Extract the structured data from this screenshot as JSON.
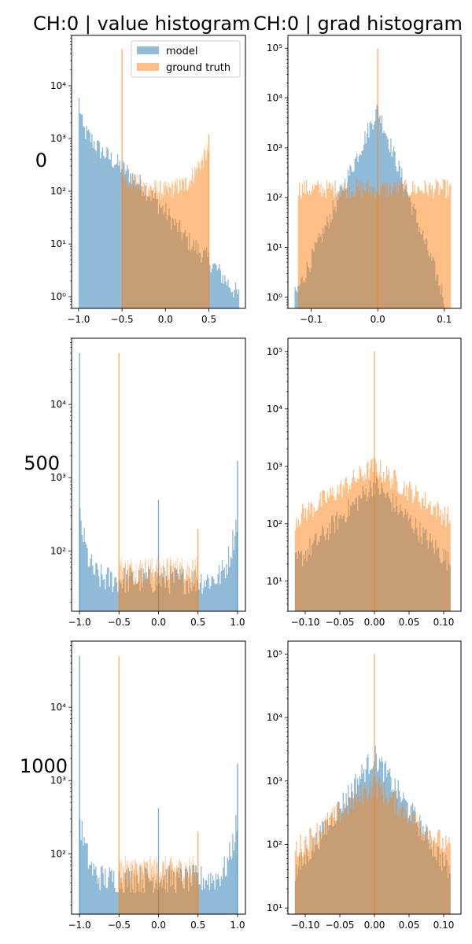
{
  "figure": {
    "col_titles": [
      "CH:0 | value histogram",
      "CH:0 | grad histogram"
    ],
    "row_labels": [
      "0",
      "500",
      "1000"
    ]
  },
  "legend": {
    "location": "top-right of first panel",
    "items": [
      {
        "label": "model",
        "color": "#1f77b4"
      },
      {
        "label": "ground truth",
        "color": "#ff7f0e"
      }
    ]
  },
  "chart_data": [
    {
      "type": "histogram",
      "panel": "row 0, value",
      "yscale": "log",
      "xlim": [
        -1.08,
        0.92
      ],
      "ylim": [
        0.6,
        90000
      ],
      "xticks": [
        -1.0,
        -0.5,
        0.0,
        0.5
      ],
      "xticklabels": [
        "−1.0",
        "−0.5",
        "0.0",
        "0.5"
      ],
      "yticks": [
        1,
        10,
        100,
        1000,
        10000
      ],
      "yticklabels": [
        "10⁰",
        "10¹",
        "10²",
        "10³",
        "10⁴"
      ],
      "series": [
        {
          "name": "model",
          "range": [
            -1.0,
            0.85
          ],
          "approx_counts_at_x": [
            [
              -1.0,
              6000
            ],
            [
              -0.95,
              1500
            ],
            [
              -0.75,
              600
            ],
            [
              -0.5,
              280
            ],
            [
              -0.25,
              120
            ],
            [
              0.0,
              40
            ],
            [
              0.25,
              12
            ],
            [
              0.5,
              5
            ],
            [
              0.85,
              1
            ]
          ]
        },
        {
          "name": "ground truth",
          "range": [
            -0.5,
            0.5
          ],
          "spikes": [
            [
              -0.5,
              50000
            ],
            [
              0.5,
              1200
            ]
          ],
          "approx_counts_at_x": [
            [
              -0.5,
              200
            ],
            [
              -0.25,
              120
            ],
            [
              0.0,
              100
            ],
            [
              0.25,
              140
            ],
            [
              0.5,
              600
            ]
          ]
        }
      ]
    },
    {
      "type": "histogram",
      "panel": "row 0, grad",
      "yscale": "log",
      "xlim": [
        -0.135,
        0.125
      ],
      "ylim": [
        0.6,
        180000
      ],
      "xticks": [
        -0.1,
        0.0,
        0.1
      ],
      "xticklabels": [
        "−0.1",
        "0.0",
        "0.1"
      ],
      "yticks": [
        1,
        10,
        100,
        1000,
        10000,
        100000
      ],
      "yticklabels": [
        "10⁰",
        "10¹",
        "10²",
        "10³",
        "10⁴",
        "10⁵"
      ],
      "series": [
        {
          "name": "model",
          "range": [
            -0.125,
            0.1
          ],
          "peak": [
            0.0,
            6000
          ]
        },
        {
          "name": "ground truth",
          "range": [
            -0.12,
            0.11
          ],
          "spikes": [
            [
              0.0,
              100000
            ]
          ],
          "typical": 150
        }
      ]
    },
    {
      "type": "histogram",
      "panel": "row 500, value",
      "yscale": "log",
      "xlim": [
        -1.1,
        1.1
      ],
      "ylim": [
        15,
        80000
      ],
      "xticks": [
        -1.0,
        -0.5,
        0.0,
        0.5,
        1.0
      ],
      "xticklabels": [
        "−1.0",
        "−0.5",
        "0.0",
        "0.5",
        "1.0"
      ],
      "yticks": [
        100,
        1000,
        10000
      ],
      "yticklabels": [
        "10²",
        "10³",
        "10⁴"
      ],
      "series": [
        {
          "name": "model",
          "range": [
            -1.0,
            1.0
          ],
          "spikes": [
            [
              -1.0,
              50000
            ],
            [
              1.0,
              1700
            ],
            [
              0.0,
              500
            ]
          ],
          "edge_value": 300,
          "floor": 40
        },
        {
          "name": "ground truth",
          "range": [
            -0.5,
            0.5
          ],
          "spikes": [
            [
              -0.5,
              50000
            ],
            [
              0.5,
              200
            ]
          ],
          "typical": 55
        }
      ]
    },
    {
      "type": "histogram",
      "panel": "row 500, grad",
      "yscale": "log",
      "xlim": [
        -0.125,
        0.125
      ],
      "ylim": [
        3,
        170000
      ],
      "xticks": [
        -0.1,
        -0.05,
        0.0,
        0.05,
        0.1
      ],
      "xticklabels": [
        "−0.10",
        "−0.05",
        "0.00",
        "0.05",
        "0.10"
      ],
      "yticks": [
        10,
        100,
        1000,
        10000,
        100000
      ],
      "yticklabels": [
        "10¹",
        "10²",
        "10³",
        "10⁴",
        "10⁵"
      ],
      "series": [
        {
          "name": "model",
          "range": [
            -0.115,
            0.11
          ],
          "peak": [
            0.0,
            500
          ],
          "edge_value": 20
        },
        {
          "name": "ground truth",
          "range": [
            -0.115,
            0.11
          ],
          "spikes": [
            [
              0.0,
              100000
            ]
          ],
          "peak": [
            0.0,
            1000
          ],
          "edge_value": 120
        }
      ]
    },
    {
      "type": "histogram",
      "panel": "row 1000, value",
      "yscale": "log",
      "xlim": [
        -1.1,
        1.1
      ],
      "ylim": [
        15,
        80000
      ],
      "xticks": [
        -1.0,
        -0.5,
        0.0,
        0.5,
        1.0
      ],
      "xticklabels": [
        "−1.0",
        "−0.5",
        "0.0",
        "0.5",
        "1.0"
      ],
      "yticks": [
        100,
        1000,
        10000
      ],
      "yticklabels": [
        "10²",
        "10³",
        "10⁴"
      ],
      "series": [
        {
          "name": "model",
          "range": [
            -1.0,
            1.0
          ],
          "spikes": [
            [
              -1.0,
              50000
            ],
            [
              1.0,
              1700
            ],
            [
              0.0,
              420
            ]
          ],
          "edge_value": 300,
          "floor": 45
        },
        {
          "name": "ground truth",
          "range": [
            -0.5,
            0.5
          ],
          "spikes": [
            [
              -0.5,
              50000
            ],
            [
              0.5,
              200
            ]
          ],
          "typical": 60
        }
      ]
    },
    {
      "type": "histogram",
      "panel": "row 1000, grad",
      "yscale": "log",
      "xlim": [
        -0.125,
        0.125
      ],
      "ylim": [
        8,
        160000
      ],
      "xticks": [
        -0.1,
        -0.05,
        0.0,
        0.05,
        0.1
      ],
      "xticklabels": [
        "−0.10",
        "−0.05",
        "0.00",
        "0.05",
        "0.10"
      ],
      "yticks": [
        10,
        100,
        1000,
        10000,
        100000
      ],
      "yticklabels": [
        "10¹",
        "10²",
        "10³",
        "10⁴",
        "10⁵"
      ],
      "series": [
        {
          "name": "model",
          "range": [
            -0.115,
            0.11
          ],
          "peak": [
            0.0,
            2500
          ],
          "edge_value": 35
        },
        {
          "name": "ground truth",
          "range": [
            -0.115,
            0.11
          ],
          "spikes": [
            [
              0.0,
              100000
            ]
          ],
          "peak": [
            0.0,
            900
          ],
          "edge_value": 80
        }
      ]
    }
  ]
}
